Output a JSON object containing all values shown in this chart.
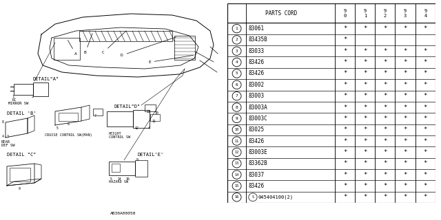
{
  "bg_color": "#ffffff",
  "diagram_label": "AB30A00058",
  "table": {
    "rows": [
      [
        "1",
        "83061",
        "*",
        "*",
        "*",
        "*",
        "*"
      ],
      [
        "2",
        "83435B",
        "*",
        "",
        "",
        "",
        ""
      ],
      [
        "3",
        "83033",
        "*",
        "*",
        "*",
        "*",
        "*"
      ],
      [
        "4",
        "83426",
        "*",
        "*",
        "*",
        "*",
        "*"
      ],
      [
        "5",
        "83426",
        "*",
        "*",
        "*",
        "*",
        "*"
      ],
      [
        "6",
        "83002",
        "*",
        "*",
        "*",
        "*",
        "*"
      ],
      [
        "7",
        "83003",
        "*",
        "*",
        "*",
        "*",
        "*"
      ],
      [
        "8",
        "83003A",
        "*",
        "*",
        "*",
        "*",
        "*"
      ],
      [
        "9",
        "83003C",
        "*",
        "*",
        "*",
        "*",
        "*"
      ],
      [
        "10",
        "83025",
        "*",
        "*",
        "*",
        "*",
        "*"
      ],
      [
        "11",
        "83426",
        "*",
        "*",
        "*",
        "*",
        "*"
      ],
      [
        "12",
        "83003E",
        "*",
        "*",
        "*",
        "*",
        "*"
      ],
      [
        "13",
        "83362B",
        "*",
        "*",
        "*",
        "*",
        "*"
      ],
      [
        "14",
        "83037",
        "*",
        "*",
        "*",
        "*",
        "*"
      ],
      [
        "15",
        "83426",
        "*",
        "*",
        "*",
        "*",
        "*"
      ],
      [
        "16",
        "S045404100(2)",
        "*",
        "*",
        "*",
        "*",
        "*"
      ]
    ]
  }
}
